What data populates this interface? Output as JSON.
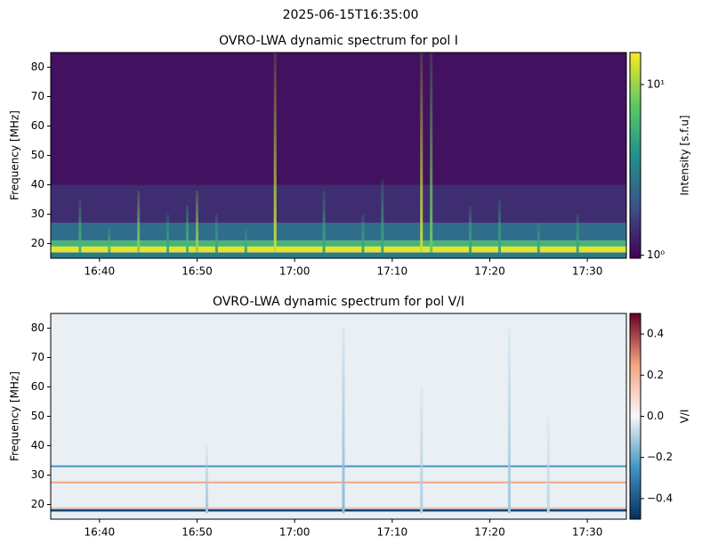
{
  "suptitle": "2025-06-15T16:35:00",
  "chart_data": [
    {
      "type": "heatmap",
      "title": "OVRO-LWA dynamic spectrum for pol I",
      "y_label": "Frequency [MHz]",
      "xlim": [
        "16:35",
        "17:34"
      ],
      "xticks": [
        "16:40",
        "16:50",
        "17:00",
        "17:10",
        "17:20",
        "17:30"
      ],
      "ylim": [
        15,
        85
      ],
      "yticks": [
        20,
        30,
        40,
        50,
        60,
        70,
        80
      ],
      "colormap": "viridis",
      "colorbar": {
        "label": "Intensity [s.f.u]",
        "log": true,
        "lim": [
          0.96,
          15.4
        ],
        "ticks": [
          {
            "value": 1,
            "label": "10⁰"
          },
          {
            "value": 10,
            "label": "10¹"
          }
        ]
      },
      "bands": [
        {
          "y": [
            15,
            17
          ],
          "value": 3
        },
        {
          "y": [
            17,
            19
          ],
          "value": 14
        },
        {
          "y": [
            19,
            21
          ],
          "value": 6
        },
        {
          "y": [
            21,
            27
          ],
          "value": 2.6
        },
        {
          "y": [
            27,
            40
          ],
          "value": 1.4
        },
        {
          "y": [
            40,
            85
          ],
          "value": 1.1
        }
      ],
      "bursts": [
        {
          "x": "16:38",
          "top": 35,
          "value": 6
        },
        {
          "x": "16:41",
          "top": 25,
          "value": 6
        },
        {
          "x": "16:44",
          "top": 38,
          "value": 9
        },
        {
          "x": "16:47",
          "top": 30,
          "value": 5
        },
        {
          "x": "16:49",
          "top": 33,
          "value": 6
        },
        {
          "x": "16:50",
          "top": 38,
          "value": 10
        },
        {
          "x": "16:52",
          "top": 30,
          "value": 5
        },
        {
          "x": "16:55",
          "top": 25,
          "value": 5
        },
        {
          "x": "16:58",
          "top": 85,
          "value": 12
        },
        {
          "x": "17:03",
          "top": 38,
          "value": 5
        },
        {
          "x": "17:07",
          "top": 30,
          "value": 5
        },
        {
          "x": "17:09",
          "top": 42,
          "value": 5
        },
        {
          "x": "17:13",
          "top": 85,
          "value": 12
        },
        {
          "x": "17:14",
          "top": 85,
          "value": 8
        },
        {
          "x": "17:18",
          "top": 33,
          "value": 5
        },
        {
          "x": "17:21",
          "top": 35,
          "value": 5
        },
        {
          "x": "17:25",
          "top": 27,
          "value": 5
        },
        {
          "x": "17:29",
          "top": 30,
          "value": 5
        }
      ]
    },
    {
      "type": "heatmap",
      "title": "OVRO-LWA dynamic spectrum for pol V/I",
      "y_label": "Frequency [MHz]",
      "xlim": [
        "16:35",
        "17:34"
      ],
      "xticks": [
        "16:40",
        "16:50",
        "17:00",
        "17:10",
        "17:20",
        "17:30"
      ],
      "ylim": [
        15,
        85
      ],
      "yticks": [
        20,
        30,
        40,
        50,
        60,
        70,
        80
      ],
      "colormap": "RdBu_r",
      "colorbar": {
        "label": "V/I",
        "log": false,
        "lim": [
          -0.5,
          0.5
        ],
        "ticks": [
          {
            "value": 0.4,
            "label": "0.4"
          },
          {
            "value": 0.2,
            "label": "0.2"
          },
          {
            "value": 0,
            "label": "0.0"
          },
          {
            "value": -0.2,
            "label": "−0.2"
          },
          {
            "value": -0.4,
            "label": "−0.4"
          }
        ]
      },
      "bands": [
        {
          "y": [
            15,
            85
          ],
          "value": -0.02
        },
        {
          "y": [
            17.6,
            18.4
          ],
          "value": -0.45
        },
        {
          "y": [
            18.6,
            19.0
          ],
          "value": 0.2
        },
        {
          "y": [
            27.2,
            27.8
          ],
          "value": 0.25
        },
        {
          "y": [
            32.7,
            33.3
          ],
          "value": -0.25
        }
      ],
      "bursts": [
        {
          "x": "16:51",
          "top": 40,
          "value": -0.12
        },
        {
          "x": "17:05",
          "top": 80,
          "value": -0.15
        },
        {
          "x": "17:13",
          "top": 60,
          "value": -0.1
        },
        {
          "x": "17:22",
          "top": 80,
          "value": -0.12
        },
        {
          "x": "17:26",
          "top": 50,
          "value": -0.08
        }
      ]
    }
  ]
}
